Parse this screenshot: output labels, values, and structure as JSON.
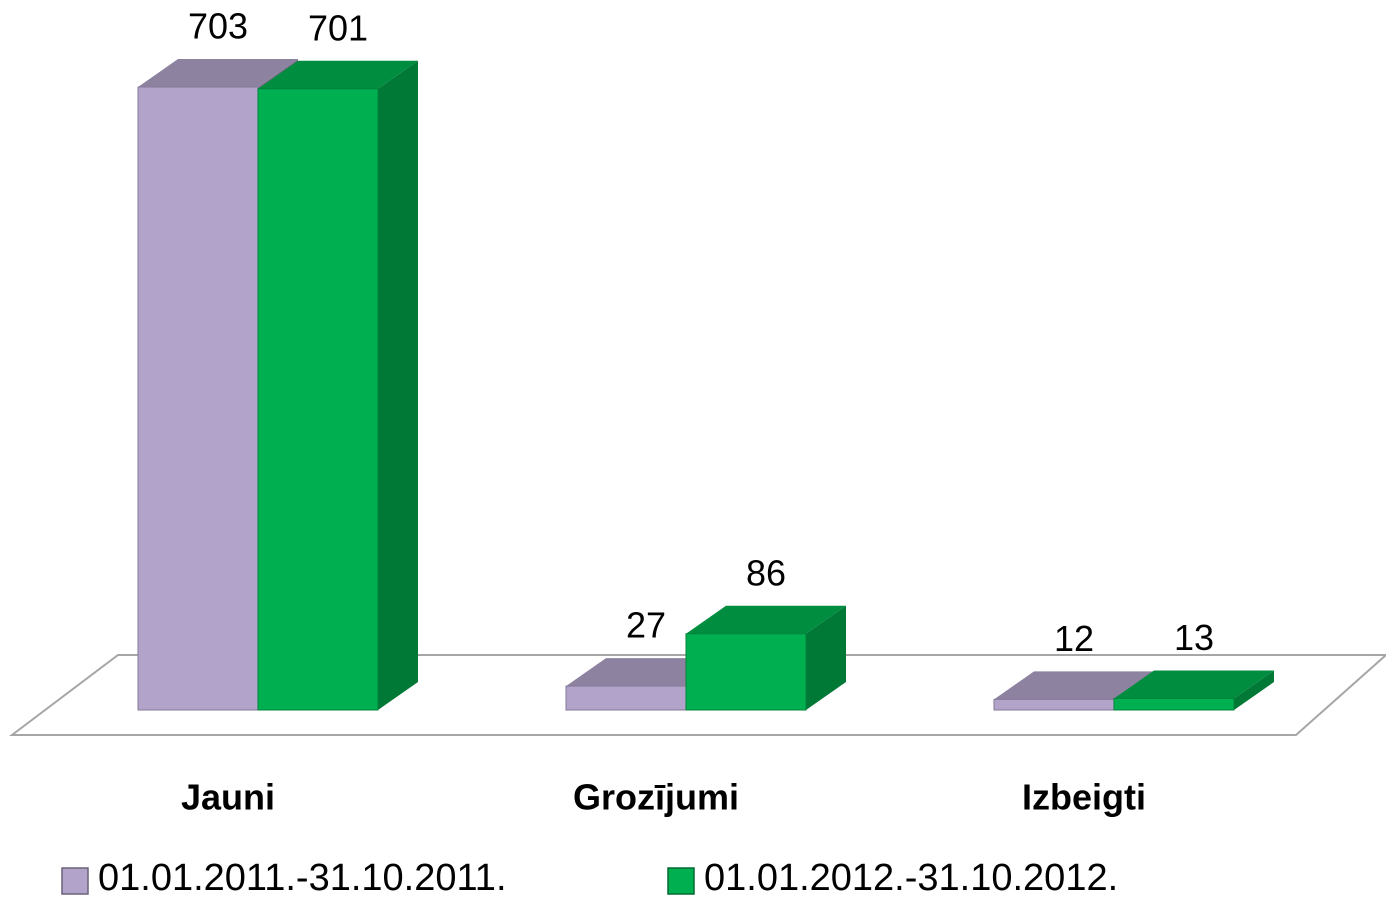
{
  "chart_data": {
    "type": "bar3d",
    "categories": [
      "Jauni",
      "Grozījumi",
      "Izbeigti"
    ],
    "series": [
      {
        "name": "01.01.2011.-31.10.2011.",
        "color": "#b1a3c9",
        "values": [
          703,
          27,
          12
        ]
      },
      {
        "name": "01.01.2012.-31.10.2012.",
        "color": "#00b050",
        "values": [
          701,
          86,
          13
        ]
      }
    ],
    "legend": "bottom"
  }
}
